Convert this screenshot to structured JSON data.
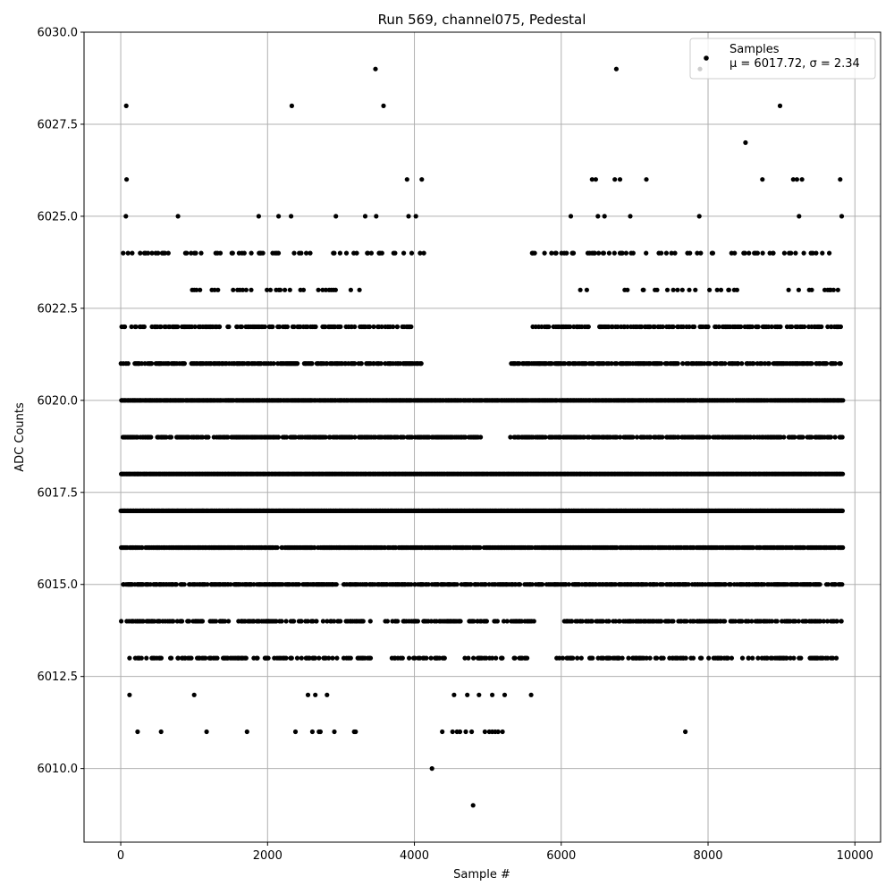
{
  "chart_data": {
    "type": "scatter",
    "title": "Run 569, channel075, Pedestal",
    "xlabel": "Sample #",
    "ylabel": "ADC Counts",
    "xlim": [
      -500,
      10350
    ],
    "ylim": [
      6008,
      6030
    ],
    "xticks": [
      0,
      2000,
      4000,
      6000,
      8000,
      10000
    ],
    "yticks": [
      6010.0,
      6012.5,
      6015.0,
      6017.5,
      6020.0,
      6022.5,
      6025.0,
      6027.5,
      6030.0
    ],
    "xtick_labels": [
      "0",
      "2000",
      "4000",
      "6000",
      "8000",
      "10000"
    ],
    "ytick_labels": [
      "6010.0",
      "6012.5",
      "6015.0",
      "6017.5",
      "6020.0",
      "6022.5",
      "6025.0",
      "6027.5",
      "6030.0"
    ],
    "grid": true,
    "legend_position": "top-right",
    "series": [
      {
        "name": "Samples",
        "stat_label": "μ = 6017.72, σ = 2.34",
        "color": "#000000",
        "marker": "dot",
        "band_levels": [
          {
            "y": 6013,
            "ranges": [
              [
                0,
                3400
              ],
              [
                3650,
                5550
              ],
              [
                5900,
                9750
              ]
            ],
            "density": 0.35
          },
          {
            "y": 6014,
            "ranges": [
              [
                0,
                3400
              ],
              [
                3600,
                5650
              ],
              [
                6000,
                9820
              ]
            ],
            "density": 0.45
          },
          {
            "y": 6015,
            "ranges": [
              [
                0,
                9820
              ]
            ],
            "density": 0.6
          },
          {
            "y": 6016,
            "ranges": [
              [
                0,
                9830
              ]
            ],
            "density": 0.8
          },
          {
            "y": 6017,
            "ranges": [
              [
                0,
                9830
              ]
            ],
            "density": 1.0
          },
          {
            "y": 6018,
            "ranges": [
              [
                0,
                9830
              ]
            ],
            "density": 1.0
          },
          {
            "y": 6019,
            "ranges": [
              [
                0,
                4900
              ],
              [
                5300,
                9830
              ]
            ],
            "density": 0.6
          },
          {
            "y": 6020,
            "ranges": [
              [
                0,
                9830
              ]
            ],
            "density": 0.95
          },
          {
            "y": 6021,
            "ranges": [
              [
                0,
                4100
              ],
              [
                5300,
                9830
              ]
            ],
            "density": 0.55
          },
          {
            "y": 6022,
            "ranges": [
              [
                0,
                4000
              ],
              [
                5600,
                9820
              ]
            ],
            "density": 0.4
          },
          {
            "y": 6023,
            "ranges": [
              [
                850,
                3550
              ],
              [
                6000,
                9800
              ]
            ],
            "density": 0.12
          },
          {
            "y": 6024,
            "ranges": [
              [
                0,
                4200
              ],
              [
                5600,
                9800
              ]
            ],
            "density": 0.18
          }
        ],
        "points": [
          {
            "x": 75,
            "y": 6028
          },
          {
            "x": 80,
            "y": 6026
          },
          {
            "x": 70,
            "y": 6025
          },
          {
            "x": 780,
            "y": 6025
          },
          {
            "x": 1880,
            "y": 6025
          },
          {
            "x": 2150,
            "y": 6025
          },
          {
            "x": 2320,
            "y": 6025
          },
          {
            "x": 2330,
            "y": 6028
          },
          {
            "x": 2930,
            "y": 6025
          },
          {
            "x": 3330,
            "y": 6025
          },
          {
            "x": 3480,
            "y": 6025
          },
          {
            "x": 3470,
            "y": 6029
          },
          {
            "x": 3580,
            "y": 6028
          },
          {
            "x": 3900,
            "y": 6026
          },
          {
            "x": 4100,
            "y": 6026
          },
          {
            "x": 3920,
            "y": 6025
          },
          {
            "x": 4020,
            "y": 6025
          },
          {
            "x": 6130,
            "y": 6025
          },
          {
            "x": 6420,
            "y": 6026
          },
          {
            "x": 6470,
            "y": 6026
          },
          {
            "x": 6500,
            "y": 6025
          },
          {
            "x": 6590,
            "y": 6025
          },
          {
            "x": 6730,
            "y": 6026
          },
          {
            "x": 6800,
            "y": 6026
          },
          {
            "x": 6750,
            "y": 6029
          },
          {
            "x": 6940,
            "y": 6025
          },
          {
            "x": 7160,
            "y": 6026
          },
          {
            "x": 7880,
            "y": 6025
          },
          {
            "x": 7890,
            "y": 6029
          },
          {
            "x": 8510,
            "y": 6027
          },
          {
            "x": 8740,
            "y": 6026
          },
          {
            "x": 8980,
            "y": 6028
          },
          {
            "x": 9160,
            "y": 6026
          },
          {
            "x": 9210,
            "y": 6026
          },
          {
            "x": 9240,
            "y": 6025
          },
          {
            "x": 9280,
            "y": 6026
          },
          {
            "x": 9800,
            "y": 6026
          },
          {
            "x": 9820,
            "y": 6025
          },
          {
            "x": 120,
            "y": 6012
          },
          {
            "x": 1000,
            "y": 6012
          },
          {
            "x": 2550,
            "y": 6012
          },
          {
            "x": 2650,
            "y": 6012
          },
          {
            "x": 2810,
            "y": 6012
          },
          {
            "x": 4540,
            "y": 6012
          },
          {
            "x": 4720,
            "y": 6012
          },
          {
            "x": 4880,
            "y": 6012
          },
          {
            "x": 5060,
            "y": 6012
          },
          {
            "x": 5230,
            "y": 6012
          },
          {
            "x": 5590,
            "y": 6012
          },
          {
            "x": 230,
            "y": 6011
          },
          {
            "x": 550,
            "y": 6011
          },
          {
            "x": 1170,
            "y": 6011
          },
          {
            "x": 1720,
            "y": 6011
          },
          {
            "x": 2380,
            "y": 6011
          },
          {
            "x": 2610,
            "y": 6011
          },
          {
            "x": 2700,
            "y": 6011
          },
          {
            "x": 2720,
            "y": 6011
          },
          {
            "x": 2910,
            "y": 6011
          },
          {
            "x": 3180,
            "y": 6011
          },
          {
            "x": 3200,
            "y": 6011
          },
          {
            "x": 4380,
            "y": 6011
          },
          {
            "x": 4520,
            "y": 6011
          },
          {
            "x": 4580,
            "y": 6011
          },
          {
            "x": 4620,
            "y": 6011
          },
          {
            "x": 4700,
            "y": 6011
          },
          {
            "x": 4780,
            "y": 6011
          },
          {
            "x": 4960,
            "y": 6011
          },
          {
            "x": 5020,
            "y": 6011
          },
          {
            "x": 5060,
            "y": 6011
          },
          {
            "x": 5100,
            "y": 6011
          },
          {
            "x": 5140,
            "y": 6011
          },
          {
            "x": 5200,
            "y": 6011
          },
          {
            "x": 7690,
            "y": 6011
          },
          {
            "x": 4240,
            "y": 6010
          },
          {
            "x": 4800,
            "y": 6009
          }
        ]
      }
    ]
  }
}
